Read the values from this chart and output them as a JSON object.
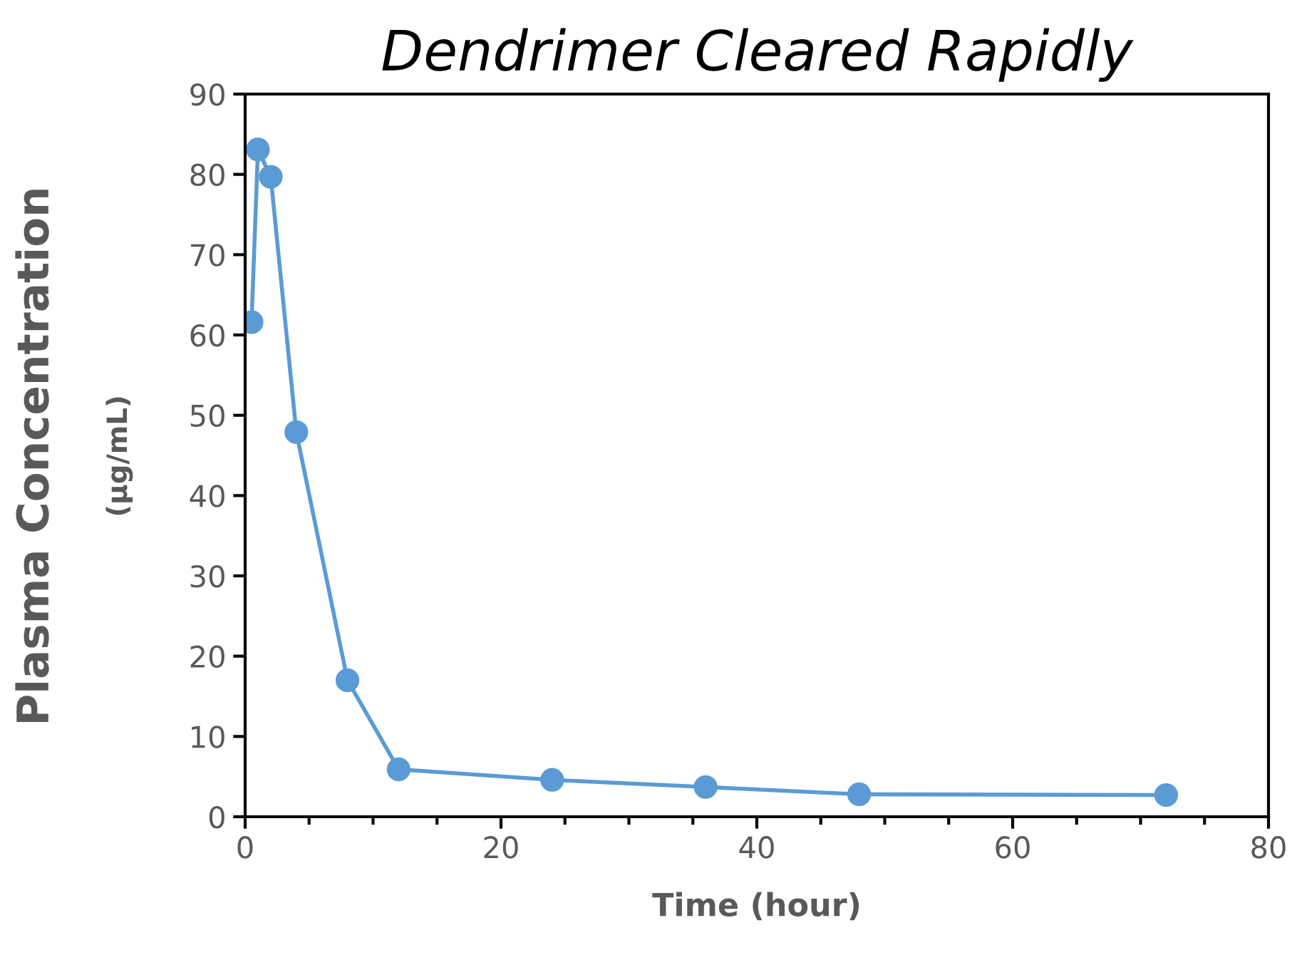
{
  "chart_data": {
    "type": "line",
    "title": "Dendrimer Cleared Rapidly",
    "xlabel": "Time (hour)",
    "ylabel": "Plasma Concentration\n(µg/mL)",
    "x": [
      0.5,
      1,
      2,
      4,
      8,
      12,
      24,
      36,
      48,
      72
    ],
    "series": [
      {
        "color": "#5b9bd5",
        "values": [
          61.6,
          83.1,
          79.7,
          47.9,
          17.0,
          5.9,
          4.6,
          3.7,
          2.8,
          2.7
        ]
      }
    ],
    "xlim": [
      0,
      80
    ],
    "xticks": [
      0,
      20,
      40,
      60,
      80
    ],
    "ylim": [
      0,
      90
    ],
    "yticks": [
      0,
      10,
      20,
      30,
      40,
      50,
      60,
      70,
      80,
      90
    ],
    "marker": "circle",
    "line_style": "solid",
    "grid": false,
    "legend": false
  }
}
